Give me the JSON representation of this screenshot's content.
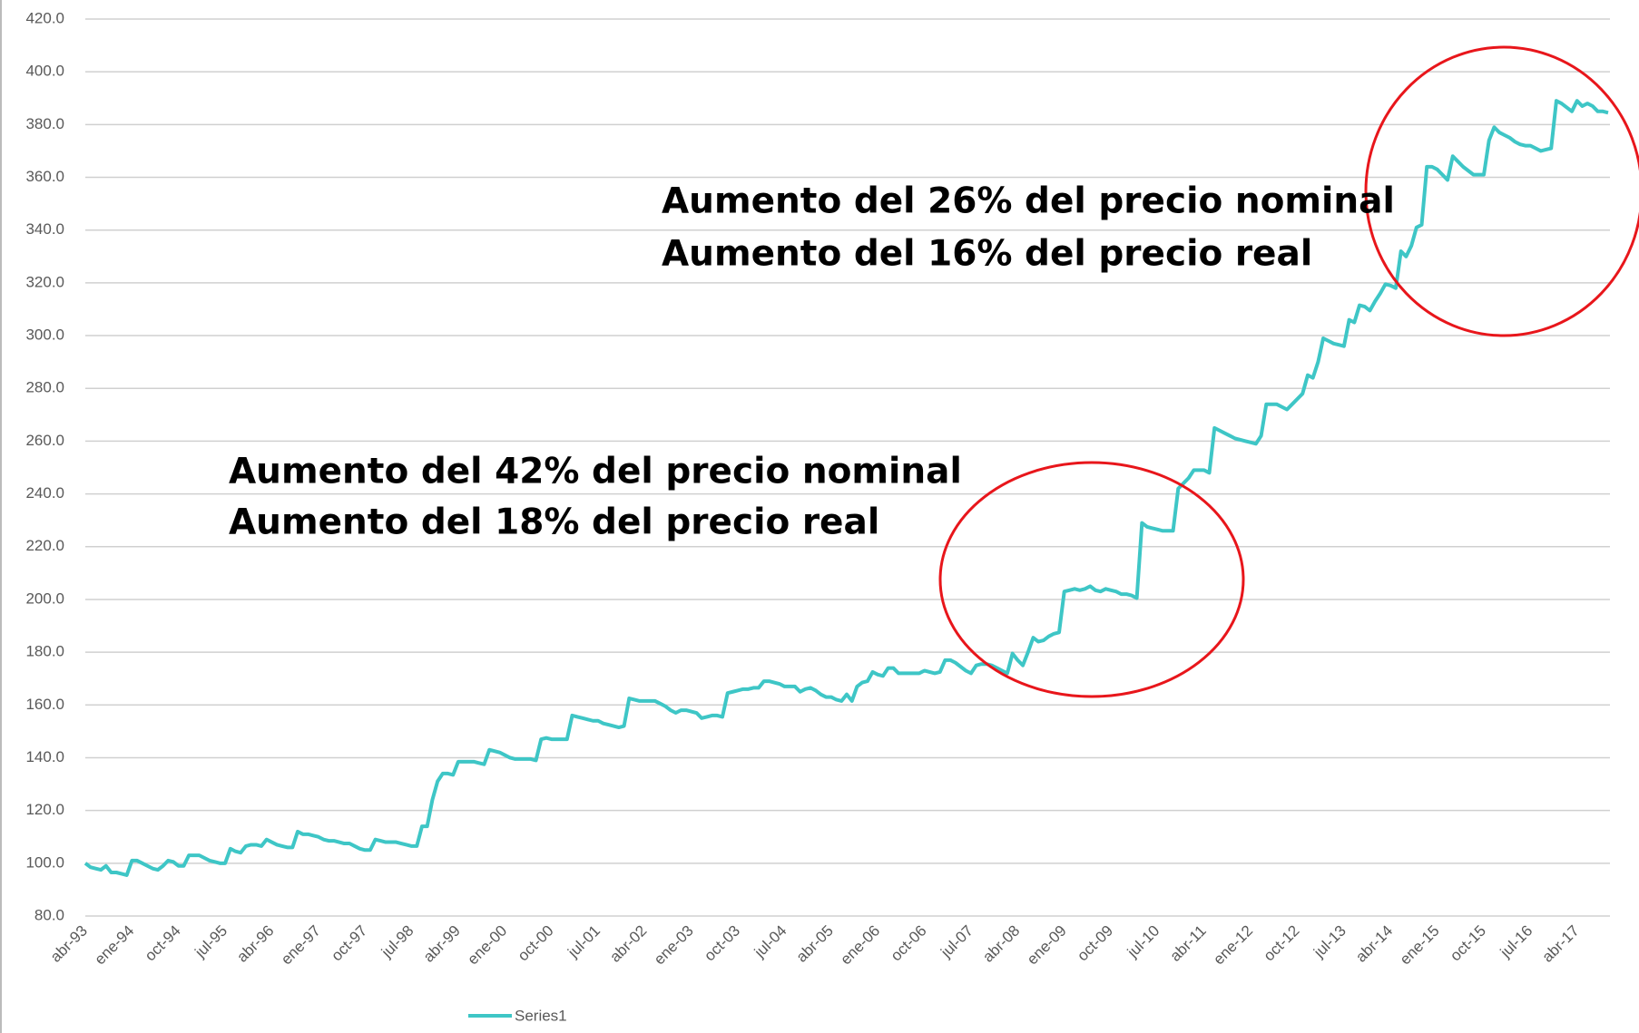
{
  "chart_data": {
    "type": "line",
    "categories": [
      "abr-93",
      null,
      null,
      null,
      null,
      null,
      null,
      null,
      null,
      "ene-94",
      null,
      null,
      null,
      null,
      null,
      null,
      null,
      null,
      "oct-94",
      null,
      null,
      null,
      null,
      null,
      null,
      null,
      null,
      "jul-95",
      null,
      null,
      null,
      null,
      null,
      null,
      null,
      null,
      "abr-96",
      null,
      null,
      null,
      null,
      null,
      null,
      null,
      null,
      "ene-97",
      null,
      null,
      null,
      null,
      null,
      null,
      null,
      null,
      "oct-97",
      null,
      null,
      null,
      null,
      null,
      null,
      null,
      null,
      "jul-98",
      null,
      null,
      null,
      null,
      null,
      null,
      null,
      null,
      "abr-99",
      null,
      null,
      null,
      null,
      null,
      null,
      null,
      null,
      "ene-00",
      null,
      null,
      null,
      null,
      null,
      null,
      null,
      null,
      "oct-00",
      null,
      null,
      null,
      null,
      null,
      null,
      null,
      null,
      "jul-01",
      null,
      null,
      null,
      null,
      null,
      null,
      null,
      null,
      "abr-02",
      null,
      null,
      null,
      null,
      null,
      null,
      null,
      null,
      "ene-03",
      null,
      null,
      null,
      null,
      null,
      null,
      null,
      null,
      "oct-03",
      null,
      null,
      null,
      null,
      null,
      null,
      null,
      null,
      "jul-04",
      null,
      null,
      null,
      null,
      null,
      null,
      null,
      null,
      "abr-05",
      null,
      null,
      null,
      null,
      null,
      null,
      null,
      null,
      "ene-06",
      null,
      null,
      null,
      null,
      null,
      null,
      null,
      null,
      "oct-06",
      null,
      null,
      null,
      null,
      null,
      null,
      null,
      null,
      "jul-07",
      null,
      null,
      null,
      null,
      null,
      null,
      null,
      null,
      "abr-08",
      null,
      null,
      null,
      null,
      null,
      null,
      null,
      null,
      "ene-09",
      null,
      null,
      null,
      null,
      null,
      null,
      null,
      null,
      "oct-09",
      null,
      null,
      null,
      null,
      null,
      null,
      null,
      null,
      "jul-10",
      null,
      null,
      null,
      null,
      null,
      null,
      null,
      null,
      "abr-11",
      null,
      null,
      null,
      null,
      null,
      null,
      null,
      null,
      "ene-12",
      null,
      null,
      null,
      null,
      null,
      null,
      null,
      null,
      "oct-12",
      null,
      null,
      null,
      null,
      null,
      null,
      null,
      null,
      "jul-13",
      null,
      null,
      null,
      null,
      null,
      null,
      null,
      null,
      "abr-14",
      null,
      null,
      null,
      null,
      null,
      null,
      null,
      null,
      "ene-15",
      null,
      null,
      null,
      null,
      null,
      null,
      null,
      null,
      "oct-15",
      null,
      null,
      null,
      null,
      null,
      null,
      null,
      null,
      "jul-16",
      null,
      null,
      null,
      null,
      null,
      null,
      null,
      null,
      "abr-17",
      null,
      null,
      null,
      null,
      null,
      null
    ],
    "series": [
      {
        "name": "Series1",
        "color": "#3ec6c6",
        "values": [
          100,
          98.5,
          98,
          97.5,
          99,
          96.5,
          96.5,
          96,
          95.5,
          101,
          101,
          100,
          99,
          98,
          97.5,
          99,
          101,
          100.5,
          99,
          99,
          103,
          103,
          103,
          102,
          101,
          100.5,
          100,
          100,
          105.5,
          104.5,
          104,
          106.5,
          107,
          107,
          106.5,
          109,
          108,
          107,
          106.5,
          106,
          106,
          112,
          111,
          111,
          110.5,
          110,
          109,
          108.5,
          108.5,
          108,
          107.5,
          107.5,
          106.5,
          105.5,
          105,
          105,
          109,
          108.5,
          108,
          108,
          108,
          107.5,
          107,
          106.5,
          106.5,
          114,
          114,
          124,
          131,
          134,
          134,
          133.5,
          138.5,
          138.5,
          138.5,
          138.5,
          138,
          137.5,
          143,
          142.5,
          142,
          141,
          140,
          139.5,
          139.5,
          139.5,
          139.5,
          139,
          147,
          147.5,
          147,
          147,
          147,
          147,
          156,
          155.5,
          155,
          154.5,
          154,
          154,
          153,
          152.5,
          152,
          151.5,
          152,
          162.5,
          162,
          161.5,
          161.5,
          161.5,
          161.5,
          160.5,
          159.5,
          158,
          157,
          158,
          158,
          157.5,
          157,
          155,
          155.5,
          156,
          156,
          155.5,
          164.5,
          165,
          165.5,
          166,
          166,
          166.5,
          166.5,
          169,
          169,
          168.5,
          168,
          167,
          167,
          167,
          165,
          166,
          166.5,
          165.5,
          164,
          163,
          163,
          162,
          161.5,
          164,
          161.5,
          167,
          168.5,
          169,
          172.5,
          171.5,
          171,
          174,
          174,
          172,
          172,
          172,
          172,
          172,
          173,
          172.5,
          172,
          172.5,
          177,
          177,
          176,
          174.5,
          173,
          172,
          175,
          175.5,
          175.5,
          175,
          174,
          173,
          172,
          179.5,
          177,
          175,
          180,
          185.5,
          184,
          184.5,
          186,
          187,
          187.5,
          203,
          203.5,
          204,
          203.5,
          204,
          205,
          203.5,
          203,
          204,
          203.5,
          203,
          202,
          202,
          201.5,
          200.5,
          229,
          227.5,
          227,
          226.5,
          226,
          226,
          226,
          242,
          244,
          246,
          249,
          249,
          249,
          248,
          265,
          264,
          263,
          262,
          261,
          260.5,
          260,
          259.5,
          259,
          262,
          274,
          274,
          274,
          273,
          272,
          274,
          276,
          278,
          285,
          284,
          290,
          299,
          298,
          297,
          296.5,
          296,
          306,
          305,
          311.5,
          311,
          309.5,
          313,
          316,
          319.5,
          319,
          318,
          332,
          330,
          334,
          341,
          342,
          364,
          364,
          363,
          361,
          359,
          368,
          366,
          364,
          362.5,
          361,
          361,
          361,
          374,
          379,
          377,
          376,
          375,
          373.5,
          372.5,
          372,
          372,
          371,
          370,
          370.5,
          371,
          389,
          388,
          386.5,
          385,
          389,
          387,
          388,
          387,
          385,
          385,
          384.5
        ]
      }
    ],
    "ylim": [
      80,
      420
    ],
    "yticks": [
      {
        "value": 80,
        "label": "80.0"
      },
      {
        "value": 100,
        "label": "100.0"
      },
      {
        "value": 120,
        "label": "120.0"
      },
      {
        "value": 140,
        "label": "140.0"
      },
      {
        "value": 160,
        "label": "160.0"
      },
      {
        "value": 180,
        "label": "180.0"
      },
      {
        "value": 200,
        "label": "200.0"
      },
      {
        "value": 220,
        "label": "220.0"
      },
      {
        "value": 240,
        "label": "240.0"
      },
      {
        "value": 260,
        "label": "260.0"
      },
      {
        "value": 280,
        "label": "280.0"
      },
      {
        "value": 300,
        "label": "300.0"
      },
      {
        "value": 320,
        "label": "320.0"
      },
      {
        "value": 340,
        "label": "340.0"
      },
      {
        "value": 360,
        "label": "360.0"
      },
      {
        "value": 380,
        "label": "380.0"
      },
      {
        "value": 400,
        "label": "400.0"
      },
      {
        "value": 420,
        "label": "420.0"
      }
    ],
    "grid": true,
    "legend": "bottom",
    "annotations": [
      "Aumento del 26% del precio nominal",
      "Aumento del 16% del precio real",
      "Aumento del 42% del precio nominal",
      "Aumento del 18% del precio real"
    ]
  }
}
